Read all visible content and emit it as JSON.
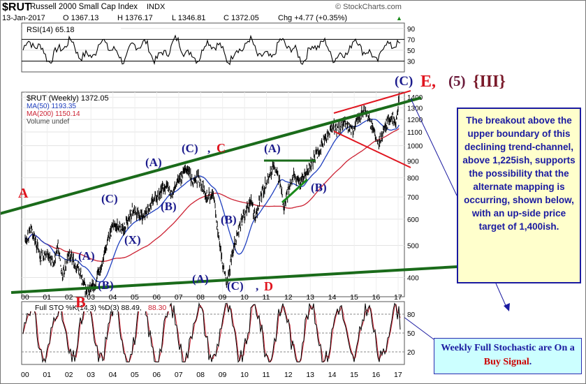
{
  "header": {
    "symbol": "$RUT",
    "name": "Russell 2000 Small Cap Index",
    "exchange": "INDX",
    "date": "13-Jan-2017",
    "open": "O 1367.13",
    "high": "H 1376.17",
    "low": "L 1346.81",
    "close": "C 1372.05",
    "change": "Chg +4.77 (+0.35%)",
    "change_marker": "▲",
    "brand": "© StockCharts.com"
  },
  "rsi_panel": {
    "label": "RSI(14) 65.18",
    "ticks": [
      "90",
      "70",
      "50",
      "30"
    ]
  },
  "price_panel": {
    "legend": {
      "main": "$RUT (Weekly) 1372.05",
      "ma50": "MA(50) 1193.35",
      "ma200": "MA(200) 1150.14",
      "volume": "Volume undef"
    },
    "ticks": [
      "1400",
      "1300",
      "1200",
      "1100",
      "1000",
      "900",
      "800",
      "700",
      "600",
      "500",
      "400"
    ]
  },
  "stoch_panel": {
    "label": "Full STO %K(14,3) %D(3) 88.49,",
    "label_value": "88.30",
    "ticks": [
      "80",
      "50",
      "20"
    ]
  },
  "x_axis": [
    "00",
    "01",
    "02",
    "03",
    "04",
    "05",
    "06",
    "07",
    "08",
    "09",
    "10",
    "11",
    "12",
    "13",
    "14",
    "15",
    "16",
    "17"
  ],
  "wave_labels": {
    "A_big": "A",
    "A1": "(A)",
    "C1": "(C)",
    "B1": "(B)",
    "X": "(X)",
    "A2": "(A)",
    "C2": "(C)",
    "C2_comma": ",",
    "C2_letter": "C",
    "B2": "(B)",
    "A3": "(A)",
    "B3": "(B)",
    "C3": "(C)",
    "C3_comma": ",",
    "C3_letter": "D",
    "B_big": "B",
    "B_low": "(B)",
    "A4": "(A)",
    "B4": "(B)",
    "C5": "(C)",
    "E_label": "E,",
    "five": "(5)",
    "three": "{III}"
  },
  "callout_main": "The breakout above the upper boundary of this declining trend-channel, above 1,225ish, supports the possibility that the alternate mapping is occurring, shown below, with an up-side price target of 1,400ish.",
  "callout_stoch": {
    "text_a": "Weekly Full Stochastic are On a",
    "text_b": "Buy Signal",
    "text_c": "."
  },
  "colors": {
    "price": "#000000",
    "ma50": "#1f3fbf",
    "ma200": "#cc2233",
    "trendline": "#1a6b1a",
    "red_line": "#e0141e",
    "wave_blue": "#1a1a8c",
    "wave_red": "#e0141e",
    "grid": "#dcdcdc"
  },
  "chart_data": [
    {
      "type": "line",
      "title": "RSI(14) 65.18",
      "ylim": [
        10,
        100
      ],
      "ticks": [
        90,
        70,
        50,
        30
      ]
    },
    {
      "type": "line",
      "title": "$RUT (Weekly) 1372.05",
      "x_ticks": [
        "00",
        "01",
        "02",
        "03",
        "04",
        "05",
        "06",
        "07",
        "08",
        "09",
        "10",
        "11",
        "12",
        "13",
        "14",
        "15",
        "16",
        "17"
      ],
      "y_scale": "log",
      "ylim": [
        350,
        1450
      ],
      "y_ticks": [
        1400,
        1300,
        1200,
        1100,
        1000,
        900,
        800,
        700,
        600,
        500,
        400
      ],
      "series": [
        {
          "name": "$RUT",
          "x": [
            2000,
            2000.3,
            2000.7,
            2001.0,
            2001.3,
            2001.5,
            2001.7,
            2002.0,
            2002.4,
            2002.8,
            2003.2,
            2003.6,
            2004.0,
            2004.5,
            2004.9,
            2005.4,
            2005.9,
            2006.4,
            2006.7,
            2007.0,
            2007.4,
            2007.6,
            2007.9,
            2008.3,
            2008.6,
            2008.9,
            2009.2,
            2009.5,
            2009.9,
            2010.3,
            2010.5,
            2010.8,
            2011.3,
            2011.6,
            2011.8,
            2012.2,
            2012.5,
            2012.9,
            2013.3,
            2013.7,
            2014.0,
            2014.3,
            2014.6,
            2014.9,
            2015.2,
            2015.5,
            2015.8,
            2016.1,
            2016.4,
            2016.7,
            2016.9,
            2017.04
          ],
          "values": [
            520,
            560,
            460,
            480,
            430,
            500,
            400,
            470,
            430,
            360,
            380,
            470,
            580,
            560,
            640,
            610,
            690,
            760,
            710,
            790,
            850,
            780,
            800,
            710,
            700,
            480,
            380,
            500,
            600,
            680,
            600,
            720,
            860,
            780,
            650,
            820,
            770,
            850,
            940,
            1060,
            1140,
            1120,
            1180,
            1100,
            1220,
            1270,
            1140,
            1000,
            1130,
            1230,
            1180,
            1372
          ]
        },
        {
          "name": "MA(50)",
          "values_last": 1193.35
        },
        {
          "name": "MA(200)",
          "values_last": 1150.14
        }
      ]
    },
    {
      "type": "line",
      "title": "Full STO %K(14,3) %D(3) 88.49, 88.30",
      "ylim": [
        0,
        100
      ],
      "ticks": [
        80,
        50,
        20
      ]
    }
  ]
}
